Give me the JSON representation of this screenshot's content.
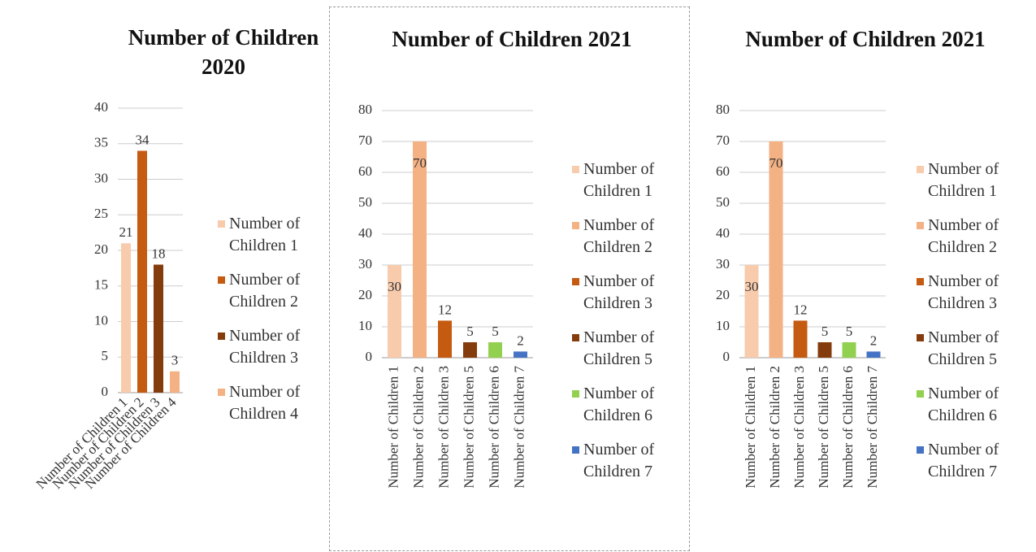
{
  "chart_data": [
    {
      "type": "bar",
      "title": "Number of Children 2020",
      "categories": [
        "Number of Children 1",
        "Number of Children 2",
        "Number of Children 3",
        "Number of Children 4"
      ],
      "values": [
        21,
        34,
        18,
        3
      ],
      "colors": [
        "#f8cbad",
        "#c55a11",
        "#843c0c",
        "#f4b183"
      ],
      "ylim": [
        0,
        40
      ],
      "yticks": [
        0,
        5,
        10,
        15,
        20,
        25,
        30,
        35,
        40
      ],
      "grid": true,
      "legend": "right"
    },
    {
      "type": "bar",
      "title": "Number of Children 2021",
      "categories": [
        "Number of Children 1",
        "Number of Children 2",
        "Number of Children 3",
        "Number of Children 5",
        "Number of Children 6",
        "Number of Children 7"
      ],
      "values": [
        30,
        70,
        12,
        5,
        5,
        2
      ],
      "colors": [
        "#f8cbad",
        "#f4b183",
        "#c55a11",
        "#843c0c",
        "#92d050",
        "#4472c4"
      ],
      "ylim": [
        0,
        80
      ],
      "yticks": [
        0,
        10,
        20,
        30,
        40,
        50,
        60,
        70,
        80
      ],
      "grid": true,
      "legend": "right"
    },
    {
      "type": "bar",
      "title": "Number of Children 2021",
      "categories": [
        "Number of Children 1",
        "Number of Children 2",
        "Number of Children 3",
        "Number of Children 5",
        "Number of Children 6",
        "Number of Children 7"
      ],
      "values": [
        30,
        70,
        12,
        5,
        5,
        2
      ],
      "colors": [
        "#f8cbad",
        "#f4b183",
        "#c55a11",
        "#843c0c",
        "#92d050",
        "#4472c4"
      ],
      "ylim": [
        0,
        80
      ],
      "yticks": [
        0,
        10,
        20,
        30,
        40,
        50,
        60,
        70,
        80
      ],
      "grid": true,
      "legend": "right"
    }
  ]
}
